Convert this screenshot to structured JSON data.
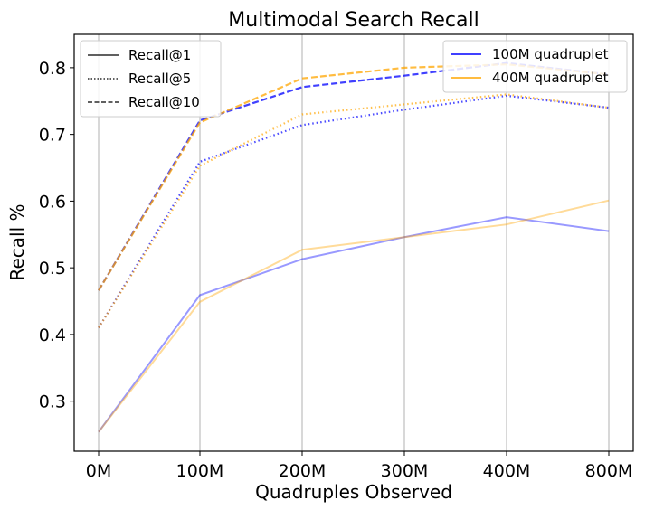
{
  "chart_data": {
    "type": "line",
    "title": "Multimodal Search Recall",
    "xlabel": "Quadruples Observed",
    "ylabel": "Recall %",
    "categories": [
      "0M",
      "100M",
      "200M",
      "300M",
      "400M",
      "800M"
    ],
    "ylim": [
      0.225,
      0.85
    ],
    "yticks": [
      "0.3",
      "0.4",
      "0.5",
      "0.6",
      "0.7",
      "0.8"
    ],
    "grid": "vertical",
    "colors": {
      "100M quadruplet": "#0000ff",
      "400M quadruplet": "#ffa500"
    },
    "series": [
      {
        "name": "100M quadruplet",
        "metric": "Recall@1",
        "values": [
          0.254,
          0.459,
          0.513,
          0.546,
          0.576,
          0.555
        ]
      },
      {
        "name": "400M quadruplet",
        "metric": "Recall@1",
        "values": [
          0.254,
          0.449,
          0.527,
          0.546,
          0.565,
          0.601
        ]
      },
      {
        "name": "100M quadruplet",
        "metric": "Recall@5",
        "values": [
          0.41,
          0.659,
          0.714,
          0.737,
          0.758,
          0.74
        ]
      },
      {
        "name": "400M quadruplet",
        "metric": "Recall@5",
        "values": [
          0.41,
          0.653,
          0.73,
          0.745,
          0.76,
          0.74
        ]
      },
      {
        "name": "100M quadruplet",
        "metric": "Recall@10",
        "values": [
          0.466,
          0.721,
          0.771,
          0.788,
          0.807,
          0.79
        ]
      },
      {
        "name": "400M quadruplet",
        "metric": "Recall@10",
        "values": [
          0.466,
          0.718,
          0.784,
          0.8,
          0.805,
          0.79
        ]
      }
    ],
    "legends": [
      {
        "placement": "top-left",
        "entries": [
          "Recall@1",
          "Recall@5",
          "Recall@10"
        ]
      },
      {
        "placement": "top-right",
        "entries": [
          "100M quadruplet",
          "400M quadruplet"
        ]
      }
    ]
  }
}
